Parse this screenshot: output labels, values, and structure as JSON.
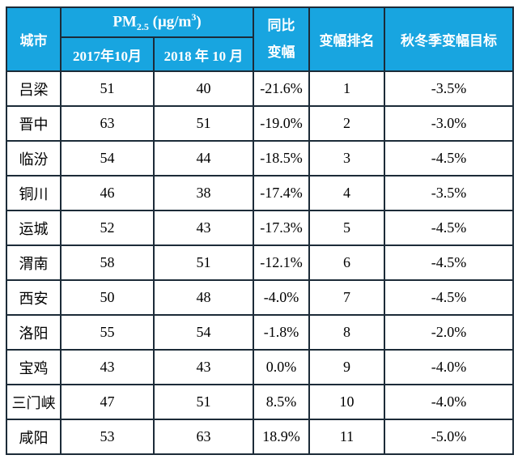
{
  "colors": {
    "header_bg": "#18a5e0",
    "header_text": "#ffffff",
    "border": "#1c2b38",
    "body_text": "#000000",
    "body_bg": "#ffffff"
  },
  "header": {
    "city": "城市",
    "pm": {
      "main": "PM",
      "sub": "2.5",
      "unit_pre": " (μg/m",
      "unit_sup": "3",
      "unit_post": ")"
    },
    "col_2017": "2017年10月",
    "col_2018": "2018 年 10 月",
    "yoy_line1": "同比",
    "yoy_line2": "变幅",
    "rank": "变幅排名",
    "target": "秋冬季变幅目标"
  },
  "chart_data": {
    "type": "table",
    "title": "PM2.5 (μg/m³) 同比变幅排名表",
    "columns": [
      "城市",
      "PM2.5 (μg/m³) 2017年10月",
      "PM2.5 (μg/m³) 2018 年 10 月",
      "同比变幅",
      "变幅排名",
      "秋冬季变幅目标"
    ],
    "rows": [
      {
        "city": "吕梁",
        "pm2017": "51",
        "pm2018": "40",
        "yoy": "-21.6%",
        "rank": "1",
        "target": "-3.5%"
      },
      {
        "city": "晋中",
        "pm2017": "63",
        "pm2018": "51",
        "yoy": "-19.0%",
        "rank": "2",
        "target": "-3.0%"
      },
      {
        "city": "临汾",
        "pm2017": "54",
        "pm2018": "44",
        "yoy": "-18.5%",
        "rank": "3",
        "target": "-4.5%"
      },
      {
        "city": "铜川",
        "pm2017": "46",
        "pm2018": "38",
        "yoy": "-17.4%",
        "rank": "4",
        "target": "-3.5%"
      },
      {
        "city": "运城",
        "pm2017": "52",
        "pm2018": "43",
        "yoy": "-17.3%",
        "rank": "5",
        "target": "-4.5%"
      },
      {
        "city": "渭南",
        "pm2017": "58",
        "pm2018": "51",
        "yoy": "-12.1%",
        "rank": "6",
        "target": "-4.5%"
      },
      {
        "city": "西安",
        "pm2017": "50",
        "pm2018": "48",
        "yoy": "-4.0%",
        "rank": "7",
        "target": "-4.5%"
      },
      {
        "city": "洛阳",
        "pm2017": "55",
        "pm2018": "54",
        "yoy": "-1.8%",
        "rank": "8",
        "target": "-2.0%"
      },
      {
        "city": "宝鸡",
        "pm2017": "43",
        "pm2018": "43",
        "yoy": "0.0%",
        "rank": "9",
        "target": "-4.0%"
      },
      {
        "city": "三门峡",
        "pm2017": "47",
        "pm2018": "51",
        "yoy": "8.5%",
        "rank": "10",
        "target": "-4.0%"
      },
      {
        "city": "咸阳",
        "pm2017": "53",
        "pm2018": "63",
        "yoy": "18.9%",
        "rank": "11",
        "target": "-5.0%"
      }
    ]
  }
}
